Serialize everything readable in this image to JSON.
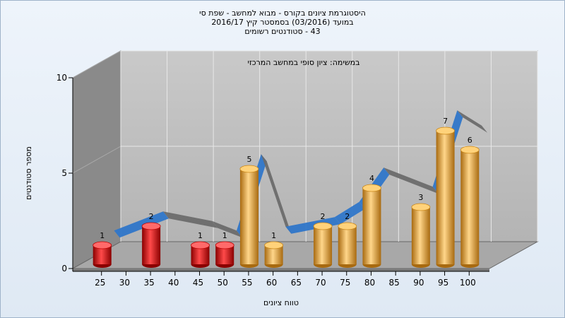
{
  "chart_data": {
    "type": "bar",
    "title": [
      "היסטוגרמת ציונים בקורס - מבוא למחשב - שפת סי",
      "במועד  (03/2016)  בסמסטר קיץ 2016/17",
      "43 - סטודנטים רשומים"
    ],
    "annotation": "במשימה: ציון סופי במחשב המרכזי",
    "xlabel": "טווח ציונים",
    "ylabel": "מספר סטודנטים",
    "x_ticks": [
      "25",
      "30",
      "35",
      "40",
      "45",
      "50",
      "55",
      "60",
      "65",
      "70",
      "75",
      "80",
      "85",
      "90",
      "95",
      "100"
    ],
    "y_ticks": [
      "0",
      "5",
      "10"
    ],
    "ylim": [
      0,
      10
    ],
    "bars": [
      {
        "x": 25,
        "value": 1,
        "label": "1",
        "color": "red"
      },
      {
        "x": 35,
        "value": 2,
        "label": "2",
        "color": "red"
      },
      {
        "x": 45,
        "value": 1,
        "label": "1",
        "color": "red"
      },
      {
        "x": 50,
        "value": 1,
        "label": "1",
        "color": "red"
      },
      {
        "x": 55,
        "value": 5,
        "label": "5",
        "color": "gold"
      },
      {
        "x": 60,
        "value": 1,
        "label": "1",
        "color": "gold"
      },
      {
        "x": 70,
        "value": 2,
        "label": "2",
        "color": "gold"
      },
      {
        "x": 75,
        "value": 2,
        "label": "2",
        "color": "gold"
      },
      {
        "x": 80,
        "value": 4,
        "label": "4",
        "color": "gold"
      },
      {
        "x": 90,
        "value": 3,
        "label": "3",
        "color": "gold"
      },
      {
        "x": 95,
        "value": 7,
        "label": "7",
        "color": "gold"
      },
      {
        "x": 100,
        "value": 6,
        "label": "6",
        "color": "gold"
      }
    ],
    "trend": [
      1.5,
      2.5,
      2,
      1.5,
      5.5,
      1.7,
      2.2,
      3,
      4.8,
      3.8,
      7.8,
      7
    ],
    "colors": {
      "red": "#e41c1c",
      "gold": "#f0b040",
      "trend_blue": "#2f76c9",
      "trend_gray": "#6b6b6b",
      "wall": "#bcbcbc",
      "left_wall": "#8a8a8a"
    }
  }
}
